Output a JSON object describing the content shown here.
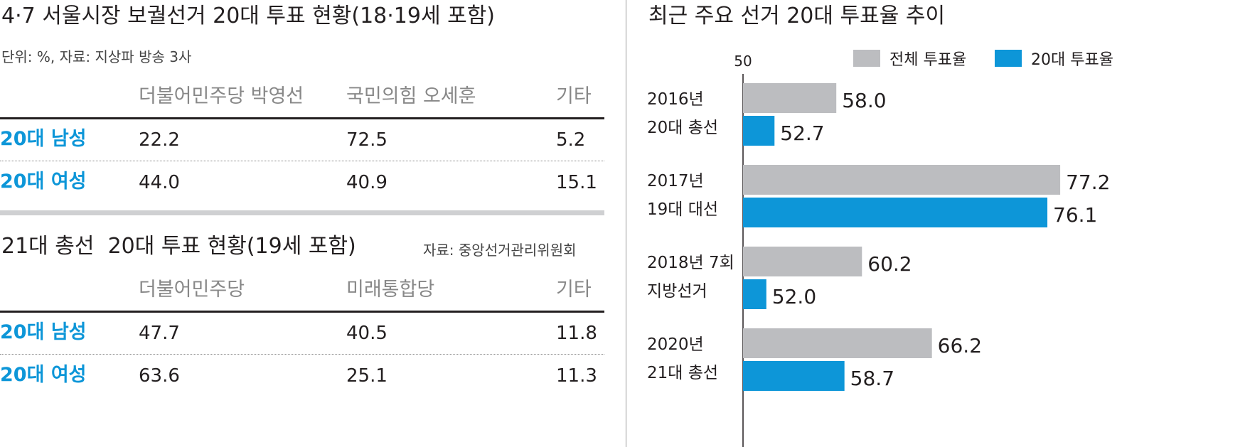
{
  "left_top": {
    "title": "4·7 서울시장 보궐선거 20대 투표 현황(18·19세 포함)",
    "subtitle": "단위: %, 자료: 지상파 방송 3사",
    "columns": [
      "더불어민주당 박영선",
      "국민의힘 오세훈",
      "기타"
    ],
    "rows": [
      {
        "label": "20대 남성",
        "values": [
          "22.2",
          "72.5",
          "5.2"
        ]
      },
      {
        "label": "20대 여성",
        "values": [
          "44.0",
          "40.9",
          "15.1"
        ]
      }
    ]
  },
  "left_bottom": {
    "title": "21대 총선  20대 투표 현황(19세 포함)",
    "source": "자료: 중앙선거관리위원회",
    "columns": [
      "더불어민주당",
      "미래통합당",
      "기타"
    ],
    "rows": [
      {
        "label": "20대 남성",
        "values": [
          "47.7",
          "40.5",
          "11.8"
        ]
      },
      {
        "label": "20대 여성",
        "values": [
          "63.6",
          "25.1",
          "11.3"
        ]
      }
    ]
  },
  "chart_data": {
    "type": "bar",
    "orientation": "horizontal",
    "title": "최근 주요 선거 20대 투표율 추이",
    "axis_start_label": "50",
    "xlim": [
      50,
      78
    ],
    "categories": [
      [
        "2016년",
        "20대 총선"
      ],
      [
        "2017년",
        "19대 대선"
      ],
      [
        "2018년 7회",
        "지방선거"
      ],
      [
        "2020년",
        "21대 총선"
      ]
    ],
    "series": [
      {
        "name": "전체 투표율",
        "color": "#bcbdc0",
        "values": [
          58.0,
          77.2,
          60.2,
          66.2
        ]
      },
      {
        "name": "20대 투표율",
        "color": "#0d96d8",
        "values": [
          52.7,
          76.1,
          52.0,
          58.7
        ]
      }
    ],
    "legend_position": "top-right",
    "grid": false
  }
}
